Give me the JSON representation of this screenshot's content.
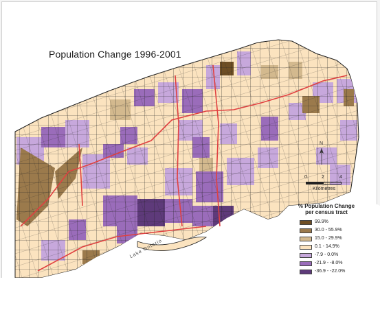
{
  "title": "Population Change 1996-2001",
  "legend": {
    "title_line1": "% Population Change",
    "title_line2": "per census tract",
    "classes": [
      {
        "label": "99.9%",
        "color": "#6e4e24"
      },
      {
        "label": "30.0 - 55.9%",
        "color": "#9b7a4c"
      },
      {
        "label": "15.0 - 29.9%",
        "color": "#d3b98e"
      },
      {
        "label": "0.1 - 14.9%",
        "color": "#fbe3bf"
      },
      {
        "label": "-7.9 - 0.0%",
        "color": "#c7a8dc"
      },
      {
        "label": "-21.9 - -8.0%",
        "color": "#9a6cba"
      },
      {
        "label": "-36.9 - -22.0%",
        "color": "#5e3a7a"
      }
    ]
  },
  "scale": {
    "ticks": [
      "0",
      "2",
      "4"
    ],
    "unit": "Kilometres"
  },
  "north_label": "N",
  "water_label": "Lake Ontario",
  "colors": {
    "tract_border": "#222222",
    "highway": "#e04040"
  }
}
